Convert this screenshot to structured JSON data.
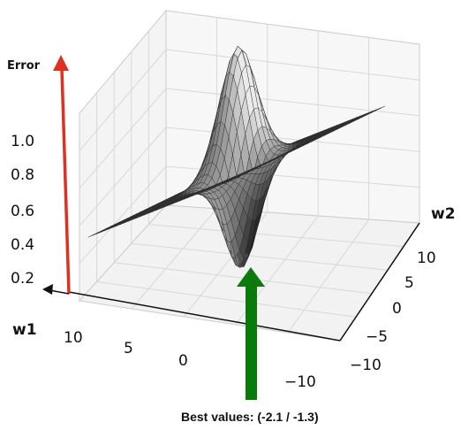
{
  "chart_data": {
    "type": "surface",
    "title": "",
    "axes": {
      "w1": {
        "label": "w1",
        "range": [
          -10,
          10
        ],
        "ticks": [
          "10",
          "5",
          "0",
          "−10"
        ]
      },
      "w2": {
        "label": "w2",
        "range": [
          -10,
          10
        ],
        "ticks": [
          "10",
          "5",
          "0",
          "−5",
          "−10"
        ]
      },
      "z": {
        "label": "Error",
        "range": [
          0.2,
          1.0
        ],
        "ticks": [
          "1.0",
          "0.8",
          "0.6",
          "0.4",
          "0.2"
        ]
      }
    },
    "surface": {
      "description_values": {
        "peak_value": 1.0,
        "minimum_value": 0.1,
        "minimum_point": {
          "w1": -2.1,
          "w2": -1.3
        },
        "flat_value": 0.5
      }
    },
    "grid": true,
    "annotations": {
      "best_values_label": "Best values: (-2.1 / -1.3)"
    },
    "colors": {
      "surface": "#8c8c8c",
      "error_arrow": "#e03020",
      "best_arrow": "#0a7a0a"
    }
  }
}
